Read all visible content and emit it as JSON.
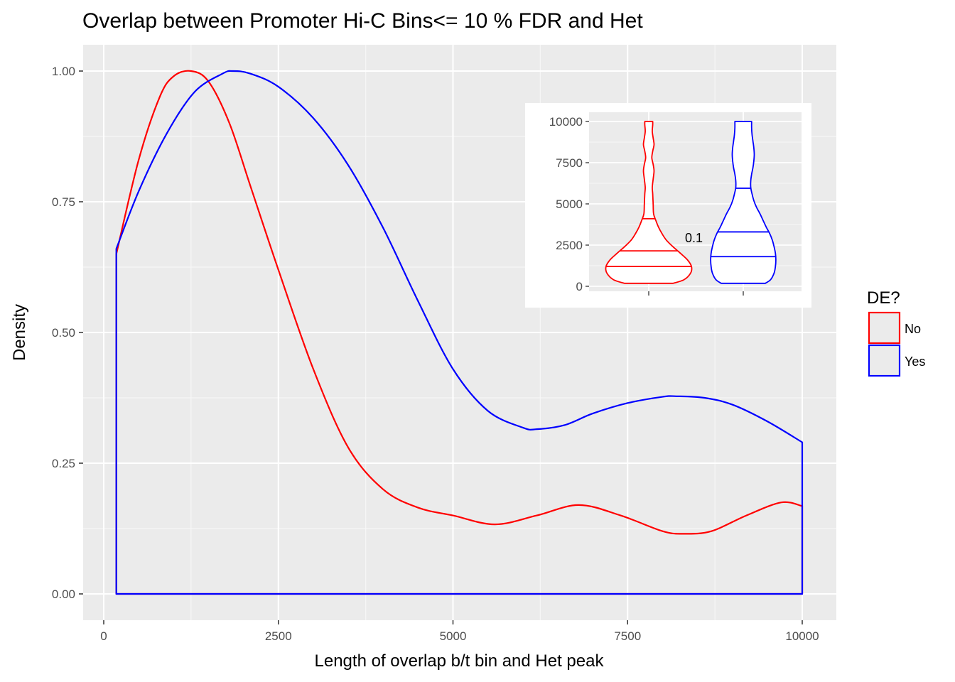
{
  "chart_data": [
    {
      "type": "area",
      "title": "Overlap between Promoter Hi-C Bins<= 10 % FDR and Het",
      "xlabel": "Length of overlap b/t bin and Het peak",
      "ylabel": "Density",
      "xlim": [
        0,
        10000
      ],
      "ylim": [
        0,
        1.0
      ],
      "x_ticks": [
        0,
        2500,
        5000,
        7500,
        10000
      ],
      "x_tick_labels": [
        "0",
        "2500",
        "5000",
        "7500",
        "10000"
      ],
      "y_ticks": [
        0,
        0.25,
        0.5,
        0.75,
        1.0
      ],
      "y_tick_labels": [
        "0.00",
        "0.25",
        "0.50",
        "0.75",
        "1.00"
      ],
      "grid": true,
      "legend": {
        "title": "DE?",
        "position": "right",
        "items": [
          {
            "label": "No",
            "color": "#ff0000"
          },
          {
            "label": "Yes",
            "color": "#0000ff"
          }
        ]
      },
      "series": [
        {
          "name": "No",
          "color": "#ff0000",
          "x": [
            180,
            500,
            800,
            1000,
            1250,
            1500,
            1800,
            2100,
            2500,
            3000,
            3500,
            4000,
            4500,
            5000,
            5600,
            6200,
            6800,
            7400,
            8000,
            8300,
            8700,
            9200,
            9700,
            10000
          ],
          "y": [
            0.65,
            0.83,
            0.95,
            0.99,
            1.0,
            0.98,
            0.9,
            0.78,
            0.62,
            0.43,
            0.28,
            0.2,
            0.165,
            0.15,
            0.133,
            0.15,
            0.17,
            0.15,
            0.12,
            0.115,
            0.12,
            0.15,
            0.175,
            0.168
          ]
        },
        {
          "name": "Yes",
          "color": "#0000ff",
          "x": [
            180,
            500,
            900,
            1300,
            1700,
            1850,
            2100,
            2500,
            3000,
            3500,
            4000,
            4500,
            5000,
            5500,
            6000,
            6200,
            6600,
            7000,
            7500,
            8000,
            8200,
            8600,
            9000,
            9500,
            10000
          ],
          "y": [
            0.66,
            0.77,
            0.88,
            0.96,
            0.995,
            1.0,
            0.995,
            0.97,
            0.91,
            0.82,
            0.7,
            0.56,
            0.43,
            0.35,
            0.318,
            0.315,
            0.323,
            0.345,
            0.365,
            0.377,
            0.378,
            0.375,
            0.362,
            0.33,
            0.29
          ]
        }
      ]
    },
    {
      "type": "violin",
      "ylim": [
        0,
        10000
      ],
      "y_ticks": [
        0,
        2500,
        5000,
        7500,
        10000
      ],
      "y_tick_labels": [
        "0",
        "2500",
        "5000",
        "7500",
        "10000"
      ],
      "annotation": "0.1",
      "grid": true,
      "groups": [
        {
          "name": "No",
          "color": "#ff0000",
          "quantiles": [
            1200,
            2150,
            4100
          ],
          "profile_y": [
            180,
            400,
            800,
            1200,
            1600,
            2000,
            2400,
            2800,
            3200,
            3600,
            4000,
            4400,
            5000,
            5600,
            6000,
            6500,
            7000,
            7400,
            7800,
            8200,
            8600,
            9000,
            9400,
            9800,
            10000
          ],
          "profile_halfwidth": [
            0.55,
            0.8,
            0.95,
            0.97,
            0.88,
            0.72,
            0.55,
            0.4,
            0.3,
            0.22,
            0.16,
            0.11,
            0.1,
            0.09,
            0.08,
            0.1,
            0.12,
            0.1,
            0.07,
            0.09,
            0.12,
            0.1,
            0.08,
            0.09,
            0.09
          ]
        },
        {
          "name": "Yes",
          "color": "#0000ff",
          "quantiles": [
            1800,
            3300,
            5950
          ],
          "profile_y": [
            180,
            400,
            800,
            1200,
            1600,
            2000,
            2400,
            2800,
            3200,
            3600,
            4000,
            4400,
            4800,
            5200,
            5600,
            6000,
            6400,
            6800,
            7200,
            7600,
            8000,
            8400,
            8800,
            9200,
            9600,
            10000
          ],
          "profile_halfwidth": [
            0.5,
            0.62,
            0.7,
            0.73,
            0.74,
            0.73,
            0.7,
            0.66,
            0.6,
            0.52,
            0.45,
            0.38,
            0.3,
            0.24,
            0.2,
            0.17,
            0.17,
            0.19,
            0.22,
            0.24,
            0.25,
            0.24,
            0.22,
            0.2,
            0.19,
            0.19
          ]
        }
      ]
    }
  ]
}
